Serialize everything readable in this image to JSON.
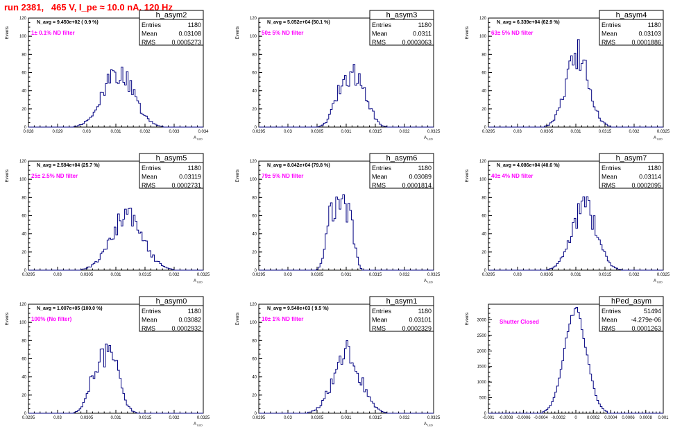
{
  "page": {
    "title": "run 2381,   465 V, I_pe ≈ 10.0 nA, 120 Hz"
  },
  "colors": {
    "histogram": "#000080",
    "filter_label": "#ff00ff",
    "title": "#ff0000",
    "axes": "#000000"
  },
  "chart_data": [
    {
      "type": "histogram",
      "name": "h_asym2",
      "ylabel": "Events",
      "xlabel": "A_{LED}",
      "xlim": [
        0.028,
        0.034
      ],
      "ylim": [
        0,
        120
      ],
      "xticks": [
        "0.028",
        "0.029",
        "0.03",
        "0.031",
        "0.032",
        "0.033",
        "0.034"
      ],
      "yticks": [
        "0",
        "20",
        "40",
        "60",
        "80",
        "100",
        "120"
      ],
      "stats": {
        "entries_label": "Entries",
        "entries": "1180",
        "mean_label": "Mean",
        "mean": "0.03108",
        "rms_label": "RMS",
        "rms": "0.0005273"
      },
      "navg": "N_avg = 9.450e+02 ( 0.9 %)",
      "label": "1± 0.1% ND filter",
      "mu": 0.03108,
      "sigma": 0.00052,
      "peak": 60,
      "shape": "single"
    },
    {
      "type": "histogram",
      "name": "h_asym3",
      "ylabel": "Events",
      "xlabel": "A_{LED}",
      "xlim": [
        0.0295,
        0.0325
      ],
      "ylim": [
        0,
        120
      ],
      "xticks": [
        "0.0295",
        "0.03",
        "0.0305",
        "0.031",
        "0.0315",
        "0.032",
        "0.0325"
      ],
      "yticks": [
        "0",
        "20",
        "40",
        "60",
        "80",
        "100",
        "120"
      ],
      "stats": {
        "entries_label": "Entries",
        "entries": "1180",
        "mean_label": "Mean",
        "mean": "0.0311",
        "rms_label": "RMS",
        "rms": "0.0003063"
      },
      "navg": "N_avg = 5.052e+04 (50.1 %)",
      "label": "50± 5% ND filter",
      "mu": 0.0311,
      "sigma": 0.00015,
      "peak": 47,
      "shape": "double",
      "sep": 0.00028
    },
    {
      "type": "histogram",
      "name": "h_asym4",
      "ylabel": "Events",
      "xlabel": "A_{LED}",
      "xlim": [
        0.0295,
        0.0325
      ],
      "ylim": [
        0,
        120
      ],
      "xticks": [
        "0.0295",
        "0.03",
        "0.0305",
        "0.031",
        "0.0315",
        "0.032",
        "0.0325"
      ],
      "yticks": [
        "0",
        "20",
        "40",
        "60",
        "80",
        "100",
        "120"
      ],
      "stats": {
        "entries_label": "Entries",
        "entries": "1180",
        "mean_label": "Mean",
        "mean": "0.03103",
        "rms_label": "RMS",
        "rms": "0.0001886"
      },
      "navg": "N_avg = 6.339e+04 (62.9 %)",
      "label": "63± 5% ND filter",
      "mu": 0.03103,
      "sigma": 0.00019,
      "peak": 80,
      "shape": "single"
    },
    {
      "type": "histogram",
      "name": "h_asym5",
      "ylabel": "Events",
      "xlabel": "A_{LED}",
      "xlim": [
        0.0295,
        0.0325
      ],
      "ylim": [
        0,
        120
      ],
      "xticks": [
        "0.0295",
        "0.03",
        "0.0305",
        "0.031",
        "0.0315",
        "0.032",
        "0.0325"
      ],
      "yticks": [
        "0",
        "20",
        "40",
        "60",
        "80",
        "100",
        "120"
      ],
      "stats": {
        "entries_label": "Entries",
        "entries": "1180",
        "mean_label": "Mean",
        "mean": "0.03119",
        "rms_label": "RMS",
        "rms": "0.0002731"
      },
      "navg": "N_avg = 2.594e+04 (25.7 %)",
      "label": "25± 2.5% ND filter",
      "mu": 0.03119,
      "sigma": 0.00027,
      "peak": 60,
      "shape": "single"
    },
    {
      "type": "histogram",
      "name": "h_asym6",
      "ylabel": "Events",
      "xlabel": "A_{LED}",
      "xlim": [
        0.0295,
        0.0325
      ],
      "ylim": [
        0,
        120
      ],
      "xticks": [
        "0.0295",
        "0.03",
        "0.0305",
        "0.031",
        "0.0315",
        "0.032",
        "0.0325"
      ],
      "yticks": [
        "0",
        "20",
        "40",
        "60",
        "80",
        "100",
        "120"
      ],
      "stats": {
        "entries_label": "Entries",
        "entries": "1180",
        "mean_label": "Mean",
        "mean": "0.03089",
        "rms_label": "RMS",
        "rms": "0.0001814"
      },
      "navg": "N_avg = 8.042e+04 (79.8 %)",
      "label": "79± 5% ND filter",
      "mu": 0.03089,
      "sigma": 0.00018,
      "peak": 70,
      "shape": "flat"
    },
    {
      "type": "histogram",
      "name": "h_asym7",
      "ylabel": "Events",
      "xlabel": "A_{LED}",
      "xlim": [
        0.0295,
        0.0325
      ],
      "ylim": [
        0,
        120
      ],
      "xticks": [
        "0.0295",
        "0.03",
        "0.0305",
        "0.031",
        "0.0315",
        "0.032",
        "0.0325"
      ],
      "yticks": [
        "0",
        "20",
        "40",
        "60",
        "80",
        "100",
        "120"
      ],
      "stats": {
        "entries_label": "Entries",
        "entries": "1180",
        "mean_label": "Mean",
        "mean": "0.03114",
        "rms_label": "RMS",
        "rms": "0.0002095"
      },
      "navg": "N_avg = 4.086e+04 (40.6 %)",
      "label": "40± 4% ND filter",
      "mu": 0.03114,
      "sigma": 0.00021,
      "peak": 70,
      "shape": "single"
    },
    {
      "type": "histogram",
      "name": "h_asym0",
      "ylabel": "Events",
      "xlabel": "A_{LED}",
      "xlim": [
        0.0295,
        0.0325
      ],
      "ylim": [
        0,
        120
      ],
      "xticks": [
        "0.0295",
        "0.03",
        "0.0305",
        "0.031",
        "0.0315",
        "0.032",
        "0.0325"
      ],
      "yticks": [
        "0",
        "20",
        "40",
        "60",
        "80",
        "100",
        "120"
      ],
      "stats": {
        "entries_label": "Entries",
        "entries": "1180",
        "mean_label": "Mean",
        "mean": "0.03082",
        "rms_label": "RMS",
        "rms": "0.0002932"
      },
      "navg": "N_avg = 1.007e+05 (100.0 %)",
      "label": "100% (No filter)",
      "mu": 0.03082,
      "sigma": 0.00014,
      "peak": 52,
      "shape": "double",
      "sep": 0.00026
    },
    {
      "type": "histogram",
      "name": "h_asym1",
      "ylabel": "Events",
      "xlabel": "A_{LED}",
      "xlim": [
        0.0295,
        0.0325
      ],
      "ylim": [
        0,
        120
      ],
      "xticks": [
        "0.0295",
        "0.03",
        "0.0305",
        "0.031",
        "0.0315",
        "0.032",
        "0.0325"
      ],
      "yticks": [
        "0",
        "20",
        "40",
        "60",
        "80",
        "100",
        "120"
      ],
      "stats": {
        "entries_label": "Entries",
        "entries": "1180",
        "mean_label": "Mean",
        "mean": "0.03101",
        "rms_label": "RMS",
        "rms": "0.0002329"
      },
      "navg": "N_avg = 9.540e+03 ( 9.5 %)",
      "label": "10± 1% ND filter",
      "mu": 0.03101,
      "sigma": 0.00023,
      "peak": 66,
      "shape": "single"
    },
    {
      "type": "histogram",
      "name": "hPed_asym",
      "ylabel": "Events",
      "xlabel": "",
      "xlim": [
        -0.001,
        0.001
      ],
      "ylim": [
        0,
        3500
      ],
      "xticks": [
        "-0.001",
        "-0.0008",
        "-0.0006",
        "-0.0004",
        "-0.0002",
        "0",
        "0.0002",
        "0.0004",
        "0.0006",
        "0.0008",
        "0.001"
      ],
      "yticks": [
        "0",
        "500",
        "1000",
        "1500",
        "2000",
        "2500",
        "3000"
      ],
      "stats": {
        "entries_label": "Entries",
        "entries": "51494",
        "mean_label": "Mean",
        "mean": "-4.279e-06",
        "rms_label": "RMS",
        "rms": "0.0001263"
      },
      "navg": "",
      "label": "Shutter Closed",
      "mu": -4.3e-06,
      "sigma": 0.000126,
      "peak": 3300,
      "shape": "single"
    }
  ]
}
